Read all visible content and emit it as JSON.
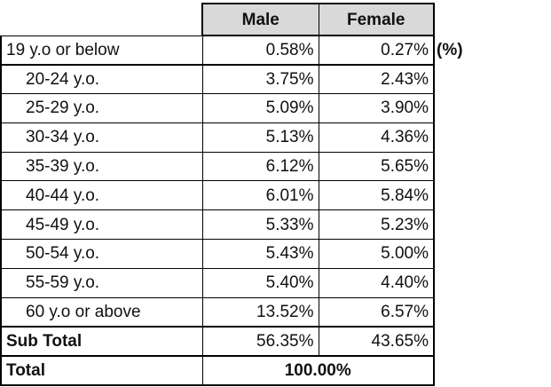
{
  "table": {
    "header": {
      "male": "Male",
      "female": "Female"
    },
    "unit_note": "(%)",
    "rows": [
      {
        "label": "19 y.o or below",
        "male": "0.58%",
        "female": "0.27%"
      },
      {
        "label": "20-24 y.o.",
        "male": "3.75%",
        "female": "2.43%"
      },
      {
        "label": "25-29 y.o.",
        "male": "5.09%",
        "female": "3.90%"
      },
      {
        "label": "30-34 y.o.",
        "male": "5.13%",
        "female": "4.36%"
      },
      {
        "label": "35-39 y.o.",
        "male": "6.12%",
        "female": "5.65%"
      },
      {
        "label": "40-44 y.o.",
        "male": "6.01%",
        "female": "5.84%"
      },
      {
        "label": "45-49 y.o.",
        "male": "5.33%",
        "female": "5.23%"
      },
      {
        "label": "50-54 y.o.",
        "male": "5.43%",
        "female": "5.00%"
      },
      {
        "label": "55-59 y.o.",
        "male": "5.40%",
        "female": "4.40%"
      },
      {
        "label": "60 y.o or above",
        "male": "13.52%",
        "female": "6.57%"
      }
    ],
    "subtotal": {
      "label": "Sub Total",
      "male": "56.35%",
      "female": "43.65%"
    },
    "total": {
      "label": "Total",
      "value": "100.00%"
    }
  },
  "colors": {
    "header_bg": "#d9d9d9",
    "border": "#000000",
    "text": "#111111",
    "background": "#ffffff"
  },
  "chart_data": {
    "type": "table",
    "title": "",
    "unit": "%",
    "categories": [
      "19 y.o or below",
      "20-24 y.o.",
      "25-29 y.o.",
      "30-34 y.o.",
      "35-39 y.o.",
      "40-44 y.o.",
      "45-49 y.o.",
      "50-54 y.o.",
      "55-59 y.o.",
      "60 y.o or above"
    ],
    "series": [
      {
        "name": "Male",
        "values": [
          0.58,
          3.75,
          5.09,
          5.13,
          6.12,
          6.01,
          5.33,
          5.43,
          5.4,
          13.52
        ]
      },
      {
        "name": "Female",
        "values": [
          0.27,
          2.43,
          3.9,
          4.36,
          5.65,
          5.84,
          5.23,
          5.0,
          4.4,
          6.57
        ]
      }
    ],
    "subtotals": {
      "Male": 56.35,
      "Female": 43.65
    },
    "total": 100.0
  }
}
